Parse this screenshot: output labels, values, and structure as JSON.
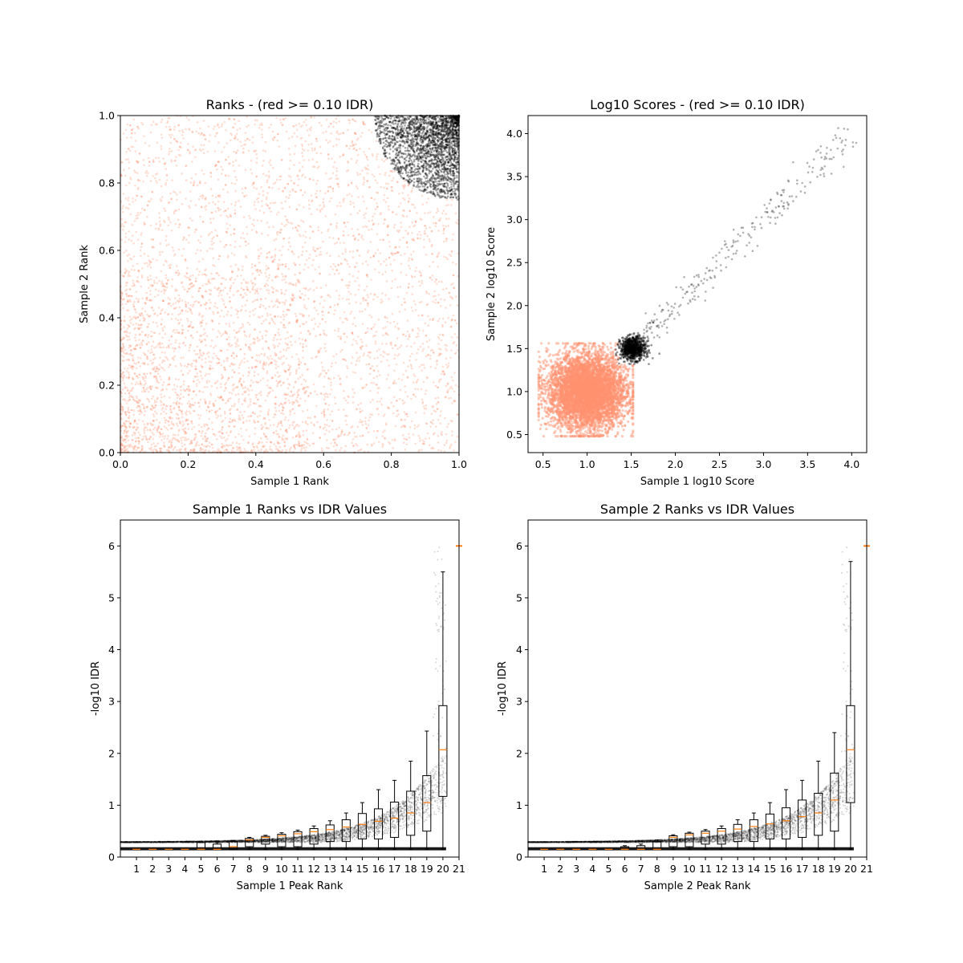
{
  "colors": {
    "fail": "#ff9270",
    "pass": "#000000",
    "median": "#ff7f0e"
  },
  "chart_data": [
    {
      "id": "ranks",
      "type": "scatter",
      "title": "Ranks - (red >= 0.10 IDR)",
      "xlabel": "Sample 1 Rank",
      "ylabel": "Sample 2 Rank",
      "xlim": [
        0,
        1
      ],
      "ylim": [
        0,
        1
      ],
      "xticks": [
        "0.0",
        "0.2",
        "0.4",
        "0.6",
        "0.8",
        "1.0"
      ],
      "yticks": [
        "0.0",
        "0.2",
        "0.4",
        "0.6",
        "0.8",
        "1.0"
      ],
      "series": [
        {
          "role": "idr >= 0.10 (red)",
          "distribution": "uniform over [0,1]x[0,1] excluding top-right quarter-circle of radius ~0.25 centered at (1,1)"
        },
        {
          "role": "idr < 0.10 (black)",
          "distribution": "top-right quarter-circle of radius ~0.25 centered at (1,1), densest near (1,1)"
        }
      ]
    },
    {
      "id": "scores",
      "type": "scatter",
      "title": "Log10 Scores - (red >= 0.10 IDR)",
      "xlabel": "Sample 1 log10 Score",
      "ylabel": "Sample 2 log10 Score",
      "xlim": [
        0.33,
        4.17
      ],
      "ylim": [
        0.29,
        4.21
      ],
      "xticks": [
        "0.5",
        "1.0",
        "1.5",
        "2.0",
        "2.5",
        "3.0",
        "3.5",
        "4.0"
      ],
      "yticks": [
        "0.5",
        "1.0",
        "1.5",
        "2.0",
        "2.5",
        "3.0",
        "3.5",
        "4.0"
      ],
      "series": [
        {
          "role": "idr >= 0.10 (red)",
          "distribution": "dense cloud x in [0.45,1.5], y in [0.48,1.55]"
        },
        {
          "role": "idr < 0.10 (black)",
          "distribution": "dense blob near (1.5,1.5) plus sparse diagonal trail to (4.0,4.0)"
        }
      ]
    },
    {
      "id": "s1idr",
      "type": "box",
      "title": "Sample 1 Ranks vs IDR Values",
      "xlabel": "Sample 1 Peak Rank",
      "ylabel": "-log10 IDR",
      "xlim": [
        0,
        21
      ],
      "ylim": [
        0,
        6.5
      ],
      "xticks": [
        "1",
        "2",
        "3",
        "4",
        "5",
        "6",
        "7",
        "8",
        "9",
        "10",
        "11",
        "12",
        "13",
        "14",
        "15",
        "16",
        "17",
        "18",
        "19",
        "20",
        "21"
      ],
      "yticks": [
        "0",
        "1",
        "2",
        "3",
        "4",
        "5",
        "6"
      ],
      "boxes": [
        {
          "q1": 0.15,
          "med": 0.15,
          "q3": 0.15,
          "wlo": 0.15,
          "whi": 0.15
        },
        {
          "q1": 0.15,
          "med": 0.15,
          "q3": 0.15,
          "wlo": 0.15,
          "whi": 0.15
        },
        {
          "q1": 0.15,
          "med": 0.15,
          "q3": 0.15,
          "wlo": 0.15,
          "whi": 0.15
        },
        {
          "q1": 0.15,
          "med": 0.15,
          "q3": 0.15,
          "wlo": 0.15,
          "whi": 0.15
        },
        {
          "q1": 0.15,
          "med": 0.15,
          "q3": 0.28,
          "wlo": 0.15,
          "whi": 0.28
        },
        {
          "q1": 0.15,
          "med": 0.15,
          "q3": 0.25,
          "wlo": 0.15,
          "whi": 0.28
        },
        {
          "q1": 0.15,
          "med": 0.2,
          "q3": 0.3,
          "wlo": 0.15,
          "whi": 0.32
        },
        {
          "q1": 0.2,
          "med": 0.33,
          "q3": 0.36,
          "wlo": 0.15,
          "whi": 0.38
        },
        {
          "q1": 0.25,
          "med": 0.38,
          "q3": 0.4,
          "wlo": 0.15,
          "whi": 0.42
        },
        {
          "q1": 0.2,
          "med": 0.41,
          "q3": 0.44,
          "wlo": 0.15,
          "whi": 0.47
        },
        {
          "q1": 0.2,
          "med": 0.45,
          "q3": 0.49,
          "wlo": 0.15,
          "whi": 0.52
        },
        {
          "q1": 0.25,
          "med": 0.49,
          "q3": 0.55,
          "wlo": 0.15,
          "whi": 0.6
        },
        {
          "q1": 0.3,
          "med": 0.53,
          "q3": 0.62,
          "wlo": 0.15,
          "whi": 0.7
        },
        {
          "q1": 0.3,
          "med": 0.58,
          "q3": 0.72,
          "wlo": 0.15,
          "whi": 0.85
        },
        {
          "q1": 0.35,
          "med": 0.63,
          "q3": 0.84,
          "wlo": 0.15,
          "whi": 1.05
        },
        {
          "q1": 0.35,
          "med": 0.69,
          "q3": 0.93,
          "wlo": 0.15,
          "whi": 1.3
        },
        {
          "q1": 0.38,
          "med": 0.75,
          "q3": 1.06,
          "wlo": 0.15,
          "whi": 1.48
        },
        {
          "q1": 0.42,
          "med": 0.85,
          "q3": 1.27,
          "wlo": 0.15,
          "whi": 1.85
        },
        {
          "q1": 0.5,
          "med": 1.05,
          "q3": 1.57,
          "wlo": 0.15,
          "whi": 2.43
        },
        {
          "q1": 1.17,
          "med": 2.07,
          "q3": 2.92,
          "wlo": 0.15,
          "whi": 5.5
        }
      ],
      "outlier_flier": {
        "x": 21,
        "y": 6.0
      }
    },
    {
      "id": "s2idr",
      "type": "box",
      "title": "Sample 2 Ranks vs IDR Values",
      "xlabel": "Sample 2 Peak Rank",
      "ylabel": "-log10 IDR",
      "xlim": [
        0,
        21
      ],
      "ylim": [
        0,
        6.5
      ],
      "xticks": [
        "1",
        "2",
        "3",
        "4",
        "5",
        "6",
        "7",
        "8",
        "9",
        "10",
        "11",
        "12",
        "13",
        "14",
        "15",
        "16",
        "17",
        "18",
        "19",
        "20",
        "21"
      ],
      "yticks": [
        "0",
        "1",
        "2",
        "3",
        "4",
        "5",
        "6"
      ],
      "boxes": [
        {
          "q1": 0.15,
          "med": 0.15,
          "q3": 0.15,
          "wlo": 0.15,
          "whi": 0.15
        },
        {
          "q1": 0.15,
          "med": 0.15,
          "q3": 0.15,
          "wlo": 0.15,
          "whi": 0.15
        },
        {
          "q1": 0.15,
          "med": 0.15,
          "q3": 0.15,
          "wlo": 0.15,
          "whi": 0.15
        },
        {
          "q1": 0.15,
          "med": 0.15,
          "q3": 0.15,
          "wlo": 0.15,
          "whi": 0.15
        },
        {
          "q1": 0.15,
          "med": 0.15,
          "q3": 0.15,
          "wlo": 0.15,
          "whi": 0.15
        },
        {
          "q1": 0.15,
          "med": 0.15,
          "q3": 0.2,
          "wlo": 0.15,
          "whi": 0.22
        },
        {
          "q1": 0.15,
          "med": 0.15,
          "q3": 0.22,
          "wlo": 0.15,
          "whi": 0.25
        },
        {
          "q1": 0.15,
          "med": 0.15,
          "q3": 0.3,
          "wlo": 0.15,
          "whi": 0.33
        },
        {
          "q1": 0.2,
          "med": 0.38,
          "q3": 0.41,
          "wlo": 0.15,
          "whi": 0.43
        },
        {
          "q1": 0.2,
          "med": 0.43,
          "q3": 0.46,
          "wlo": 0.15,
          "whi": 0.48
        },
        {
          "q1": 0.25,
          "med": 0.46,
          "q3": 0.5,
          "wlo": 0.15,
          "whi": 0.53
        },
        {
          "q1": 0.25,
          "med": 0.5,
          "q3": 0.55,
          "wlo": 0.15,
          "whi": 0.6
        },
        {
          "q1": 0.3,
          "med": 0.54,
          "q3": 0.63,
          "wlo": 0.15,
          "whi": 0.72
        },
        {
          "q1": 0.3,
          "med": 0.59,
          "q3": 0.72,
          "wlo": 0.15,
          "whi": 0.85
        },
        {
          "q1": 0.35,
          "med": 0.64,
          "q3": 0.83,
          "wlo": 0.15,
          "whi": 1.05
        },
        {
          "q1": 0.35,
          "med": 0.7,
          "q3": 0.95,
          "wlo": 0.15,
          "whi": 1.3
        },
        {
          "q1": 0.38,
          "med": 0.78,
          "q3": 1.1,
          "wlo": 0.15,
          "whi": 1.48
        },
        {
          "q1": 0.42,
          "med": 0.85,
          "q3": 1.23,
          "wlo": 0.15,
          "whi": 1.85
        },
        {
          "q1": 0.5,
          "med": 1.1,
          "q3": 1.62,
          "wlo": 0.15,
          "whi": 2.4
        },
        {
          "q1": 1.05,
          "med": 2.07,
          "q3": 2.92,
          "wlo": 0.15,
          "whi": 5.7
        }
      ],
      "outlier_flier": {
        "x": 21,
        "y": 6.0
      }
    }
  ]
}
